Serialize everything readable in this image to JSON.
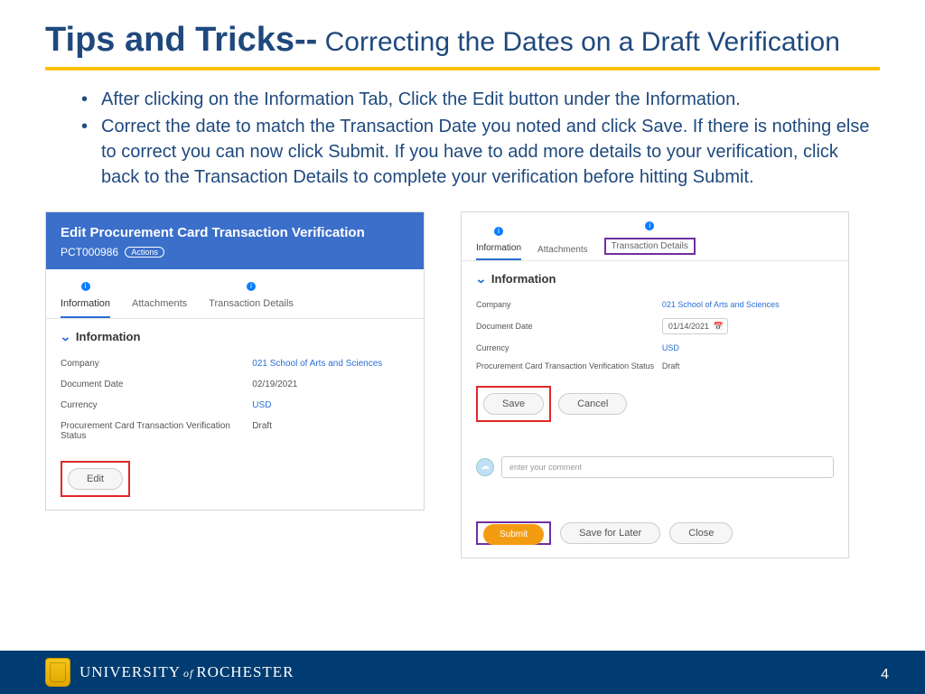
{
  "title": {
    "bold": "Tips and Tricks--",
    "sub": " Correcting the Dates on a Draft Verification"
  },
  "bullets": [
    "After clicking on the Information Tab, Click the Edit button under the Information.",
    "Correct the date to match the Transaction Date you noted and click Save.  If there is nothing else to correct you can now click Submit.  If you have to add more details to your verification, click back to the Transaction Details to complete your verification before hitting Submit."
  ],
  "left": {
    "header_title": "Edit Procurement Card Transaction Verification",
    "header_id": "PCT000986",
    "actions": "Actions",
    "tabs": {
      "info": "Information",
      "att": "Attachments",
      "td": "Transaction Details"
    },
    "section": "Information",
    "rows": {
      "company_k": "Company",
      "company_v": "021 School of Arts and Sciences",
      "docdate_k": "Document Date",
      "docdate_v": "02/19/2021",
      "currency_k": "Currency",
      "currency_v": "USD",
      "status_k": "Procurement Card Transaction Verification Status",
      "status_v": "Draft"
    },
    "edit": "Edit"
  },
  "right": {
    "tabs": {
      "info": "Information",
      "att": "Attachments",
      "td": "Transaction Details"
    },
    "section": "Information",
    "rows": {
      "company_k": "Company",
      "company_v": "021 School of Arts and Sciences",
      "docdate_k": "Document Date",
      "docdate_v": "01/14/2021",
      "currency_k": "Currency",
      "currency_v": "USD",
      "status_k": "Procurement Card Transaction Verification Status",
      "status_v": "Draft"
    },
    "save": "Save",
    "cancel": "Cancel",
    "comment_ph": "enter your comment",
    "submit": "Submit",
    "sfl": "Save for Later",
    "close": "Close"
  },
  "footer": {
    "uni1": "UNIVERSITY",
    "of": "of",
    "uni2": "ROCHESTER",
    "page": "4"
  },
  "colors": {
    "title": "#1f497d",
    "rule": "#ffc000",
    "footer": "#003b71",
    "link": "#2a6fd6",
    "red": "#e02828",
    "purple": "#7030a0",
    "orange": "#f39c12"
  }
}
